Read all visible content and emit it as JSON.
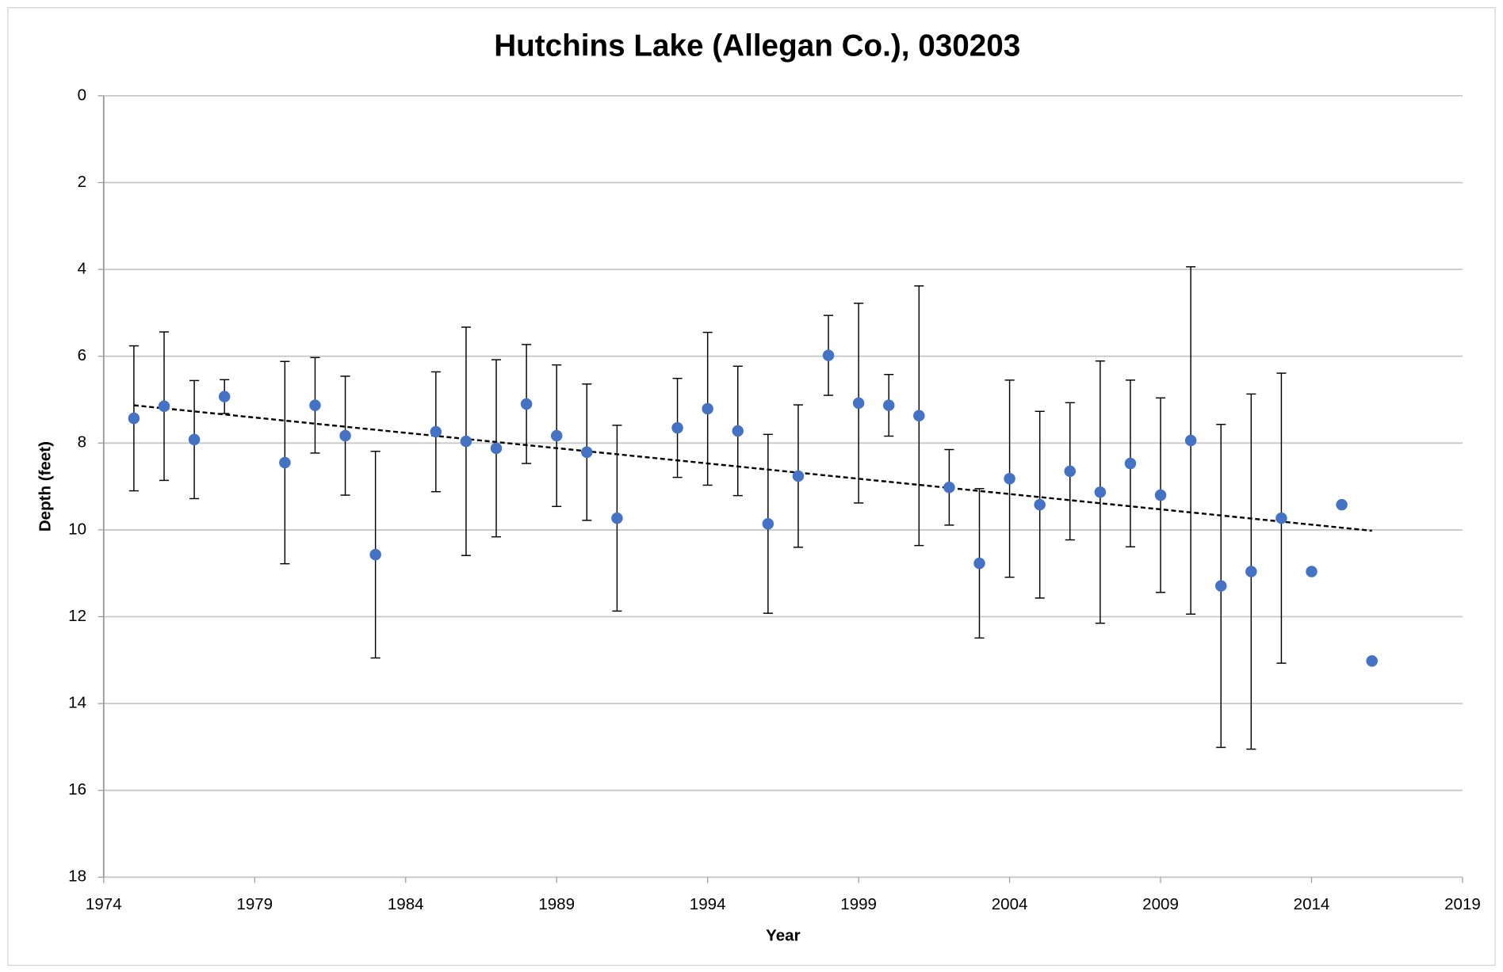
{
  "chart_data": {
    "type": "scatter",
    "title": "Hutchins Lake (Allegan Co.), 030203",
    "x_label": "Year",
    "y_label": "Depth (feet)",
    "x": [
      1975,
      1976,
      1977,
      1978,
      1980,
      1981,
      1982,
      1983,
      1985,
      1986,
      1987,
      1988,
      1989,
      1990,
      1991,
      1993,
      1994,
      1995,
      1996,
      1997,
      1998,
      1999,
      2000,
      2001,
      2002,
      2003,
      2004,
      2005,
      2006,
      2007,
      2008,
      2009,
      2010,
      2011,
      2012,
      2013,
      2014,
      2015,
      2016
    ],
    "values": [
      7.43,
      7.15,
      7.92,
      6.93,
      8.45,
      7.13,
      7.83,
      10.57,
      7.74,
      7.96,
      8.12,
      7.1,
      7.83,
      8.21,
      9.73,
      7.65,
      7.21,
      7.72,
      9.86,
      8.76,
      5.98,
      7.08,
      7.13,
      7.37,
      9.02,
      10.77,
      8.82,
      9.42,
      8.65,
      9.13,
      8.47,
      9.2,
      7.94,
      11.29,
      10.96,
      9.73,
      10.96,
      9.42,
      13.02
    ],
    "errors": [
      1.67,
      1.71,
      1.36,
      0.39,
      2.33,
      1.1,
      1.37,
      2.38,
      1.38,
      2.63,
      2.04,
      1.37,
      1.63,
      1.57,
      2.14,
      1.14,
      1.76,
      1.49,
      2.06,
      1.64,
      0.92,
      2.3,
      0.71,
      2.99,
      0.87,
      1.72,
      2.27,
      2.15,
      1.58,
      3.02,
      1.92,
      2.24,
      4.0,
      3.72,
      4.09,
      3.34,
      null,
      null,
      null
    ],
    "color": "#4472c4",
    "trendline": {
      "x": [
        1975,
        2016
      ],
      "y": [
        7.13,
        10.02
      ],
      "color": "#000000"
    },
    "xlim": [
      1974,
      2019
    ],
    "xticks": [
      1974,
      1979,
      1984,
      1989,
      1994,
      1999,
      2004,
      2009,
      2014,
      2019
    ],
    "ylim": [
      0,
      18
    ],
    "yticks": [
      0,
      2,
      4,
      6,
      8,
      10,
      12,
      14,
      16,
      18
    ],
    "y_reversed": true,
    "grid": true
  }
}
